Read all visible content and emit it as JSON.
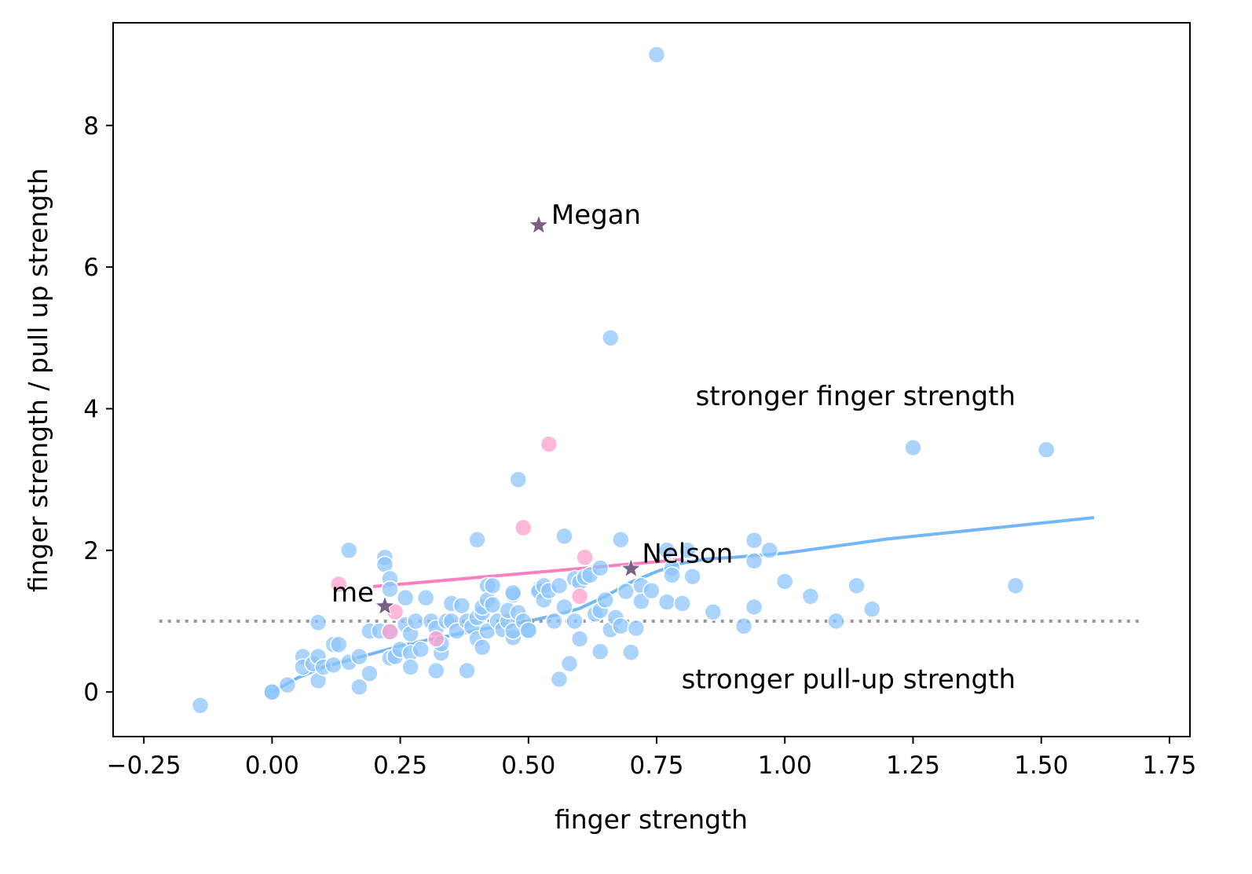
{
  "chart_data": {
    "type": "scatter",
    "title": "",
    "xlabel": "finger strength",
    "ylabel": "finger strength / pull up strength",
    "xlim": [
      -0.31,
      1.79
    ],
    "ylim": [
      -0.63,
      9.45
    ],
    "xticks": [
      -0.25,
      0.0,
      0.25,
      0.5,
      0.75,
      1.0,
      1.25,
      1.5,
      1.75
    ],
    "xtick_labels": [
      "−0.25",
      "0.00",
      "0.25",
      "0.50",
      "0.75",
      "1.00",
      "1.25",
      "1.50",
      "1.75"
    ],
    "yticks": [
      0,
      2,
      4,
      6,
      8
    ],
    "ytick_labels": [
      "0",
      "2",
      "4",
      "6",
      "8"
    ],
    "grid": false,
    "colors": {
      "blue_points": "#8ec6fb",
      "pink_points": "#ff9fce",
      "blue_line": "#72b7f8",
      "pink_line": "#f97fc1",
      "reference_line": "#999999",
      "star": "#7a5f86"
    },
    "series": [
      {
        "color": "blue",
        "points": [
          [
            -0.14,
            -0.19
          ],
          [
            0.0,
            0.0
          ],
          [
            0.0,
            0.0
          ],
          [
            0.03,
            0.1
          ],
          [
            0.06,
            0.5
          ],
          [
            0.06,
            0.35
          ],
          [
            0.08,
            0.4
          ],
          [
            0.09,
            0.16
          ],
          [
            0.09,
            0.5
          ],
          [
            0.09,
            0.98
          ],
          [
            0.1,
            0.35
          ],
          [
            0.12,
            0.38
          ],
          [
            0.12,
            0.67
          ],
          [
            0.13,
            0.67
          ],
          [
            0.15,
            0.42
          ],
          [
            0.15,
            2.0
          ],
          [
            0.17,
            0.07
          ],
          [
            0.17,
            0.5
          ],
          [
            0.19,
            0.26
          ],
          [
            0.19,
            0.86
          ],
          [
            0.21,
            0.86
          ],
          [
            0.22,
            1.9
          ],
          [
            0.22,
            1.8
          ],
          [
            0.23,
            1.6
          ],
          [
            0.23,
            1.45
          ],
          [
            0.23,
            0.85
          ],
          [
            0.23,
            0.48
          ],
          [
            0.24,
            0.5
          ],
          [
            0.25,
            0.6
          ],
          [
            0.26,
            1.33
          ],
          [
            0.26,
            0.95
          ],
          [
            0.27,
            0.55
          ],
          [
            0.27,
            0.82
          ],
          [
            0.27,
            0.35
          ],
          [
            0.28,
            1.0
          ],
          [
            0.29,
            0.6
          ],
          [
            0.3,
            1.33
          ],
          [
            0.31,
            1.0
          ],
          [
            0.32,
            0.9
          ],
          [
            0.32,
            0.3
          ],
          [
            0.33,
            0.55
          ],
          [
            0.33,
            0.68
          ],
          [
            0.34,
            1.0
          ],
          [
            0.35,
            1.25
          ],
          [
            0.35,
            1.0
          ],
          [
            0.36,
            0.86
          ],
          [
            0.37,
            1.22
          ],
          [
            0.38,
            0.3
          ],
          [
            0.38,
            1.0
          ],
          [
            0.39,
            0.92
          ],
          [
            0.4,
            0.75
          ],
          [
            0.4,
            1.05
          ],
          [
            0.4,
            2.15
          ],
          [
            0.41,
            1.12
          ],
          [
            0.41,
            1.2
          ],
          [
            0.41,
            0.63
          ],
          [
            0.42,
            1.5
          ],
          [
            0.42,
            1.3
          ],
          [
            0.42,
            0.86
          ],
          [
            0.43,
            1.5
          ],
          [
            0.43,
            1.23
          ],
          [
            0.44,
            1.0
          ],
          [
            0.45,
            0.88
          ],
          [
            0.46,
            1.0
          ],
          [
            0.46,
            1.15
          ],
          [
            0.47,
            1.37
          ],
          [
            0.47,
            1.4
          ],
          [
            0.47,
            0.77
          ],
          [
            0.47,
            0.86
          ],
          [
            0.48,
            3.0
          ],
          [
            0.48,
            1.12
          ],
          [
            0.49,
            1.0
          ],
          [
            0.5,
            0.87
          ],
          [
            0.5,
            0.87
          ],
          [
            0.52,
            1.45
          ],
          [
            0.52,
            1.42
          ],
          [
            0.53,
            1.3
          ],
          [
            0.53,
            1.5
          ],
          [
            0.54,
            1.43
          ],
          [
            0.55,
            1.0
          ],
          [
            0.56,
            1.5
          ],
          [
            0.56,
            0.18
          ],
          [
            0.57,
            2.2
          ],
          [
            0.57,
            1.2
          ],
          [
            0.58,
            0.4
          ],
          [
            0.59,
            1.0
          ],
          [
            0.59,
            1.6
          ],
          [
            0.6,
            0.75
          ],
          [
            0.6,
            1.55
          ],
          [
            0.61,
            1.62
          ],
          [
            0.62,
            1.65
          ],
          [
            0.63,
            1.1
          ],
          [
            0.64,
            1.75
          ],
          [
            0.64,
            1.15
          ],
          [
            0.64,
            0.57
          ],
          [
            0.65,
            1.3
          ],
          [
            0.66,
            5.0
          ],
          [
            0.66,
            0.88
          ],
          [
            0.67,
            1.05
          ],
          [
            0.68,
            0.93
          ],
          [
            0.68,
            2.15
          ],
          [
            0.69,
            1.42
          ],
          [
            0.7,
            0.56
          ],
          [
            0.71,
            0.9
          ],
          [
            0.72,
            1.5
          ],
          [
            0.72,
            1.28
          ],
          [
            0.74,
            1.43
          ],
          [
            0.75,
            9.0
          ],
          [
            0.77,
            1.27
          ],
          [
            0.77,
            2.0
          ],
          [
            0.78,
            1.75
          ],
          [
            0.78,
            1.65
          ],
          [
            0.8,
            1.25
          ],
          [
            0.81,
            2.0
          ],
          [
            0.82,
            1.63
          ],
          [
            0.86,
            1.13
          ],
          [
            0.92,
            0.93
          ],
          [
            0.94,
            1.2
          ],
          [
            0.94,
            2.14
          ],
          [
            0.94,
            1.85
          ],
          [
            0.97,
            2.0
          ],
          [
            1.0,
            1.56
          ],
          [
            1.05,
            1.35
          ],
          [
            1.1,
            1.0
          ],
          [
            1.14,
            1.5
          ],
          [
            1.17,
            1.17
          ],
          [
            1.25,
            3.45
          ],
          [
            1.45,
            1.5
          ],
          [
            1.51,
            3.42
          ]
        ]
      },
      {
        "color": "pink",
        "points": [
          [
            0.13,
            1.52
          ],
          [
            0.23,
            0.85
          ],
          [
            0.24,
            1.13
          ],
          [
            0.32,
            0.75
          ],
          [
            0.49,
            2.32
          ],
          [
            0.54,
            3.5
          ],
          [
            0.6,
            1.35
          ],
          [
            0.61,
            1.9
          ]
        ]
      }
    ],
    "trend_lines": [
      {
        "color": "blue",
        "points": [
          [
            0.0,
            0.0
          ],
          [
            0.05,
            0.2
          ],
          [
            0.1,
            0.35
          ],
          [
            0.15,
            0.45
          ],
          [
            0.2,
            0.55
          ],
          [
            0.25,
            0.65
          ],
          [
            0.3,
            0.73
          ],
          [
            0.35,
            0.8
          ],
          [
            0.4,
            0.87
          ],
          [
            0.45,
            0.94
          ],
          [
            0.5,
            1.0
          ],
          [
            0.55,
            1.08
          ],
          [
            0.6,
            1.18
          ],
          [
            0.65,
            1.35
          ],
          [
            0.7,
            1.55
          ],
          [
            0.75,
            1.7
          ],
          [
            0.8,
            1.82
          ],
          [
            0.85,
            1.88
          ],
          [
            0.9,
            1.9
          ],
          [
            1.0,
            1.96
          ],
          [
            1.2,
            2.16
          ],
          [
            1.4,
            2.31
          ],
          [
            1.6,
            2.46
          ]
        ]
      },
      {
        "color": "pink",
        "points": [
          [
            0.2,
            1.49
          ],
          [
            0.8,
            1.87
          ]
        ]
      }
    ],
    "reference_line": {
      "y": 1.0,
      "x_from": -0.22,
      "x_to": 1.69,
      "style": "dotted"
    },
    "highlighted": [
      {
        "name": "me",
        "x": 0.22,
        "y": 1.21,
        "marker": "star"
      },
      {
        "name": "Megan",
        "x": 0.52,
        "y": 6.59,
        "marker": "star"
      },
      {
        "name": "Nelson",
        "x": 0.7,
        "y": 1.74,
        "marker": "star"
      }
    ],
    "annotations": [
      {
        "text": "stronger finger strength",
        "x": 1.45,
        "y": 4.05,
        "align": "right"
      },
      {
        "text": "stronger pull-up strength",
        "x": 1.45,
        "y": 0.05,
        "align": "right"
      }
    ]
  }
}
